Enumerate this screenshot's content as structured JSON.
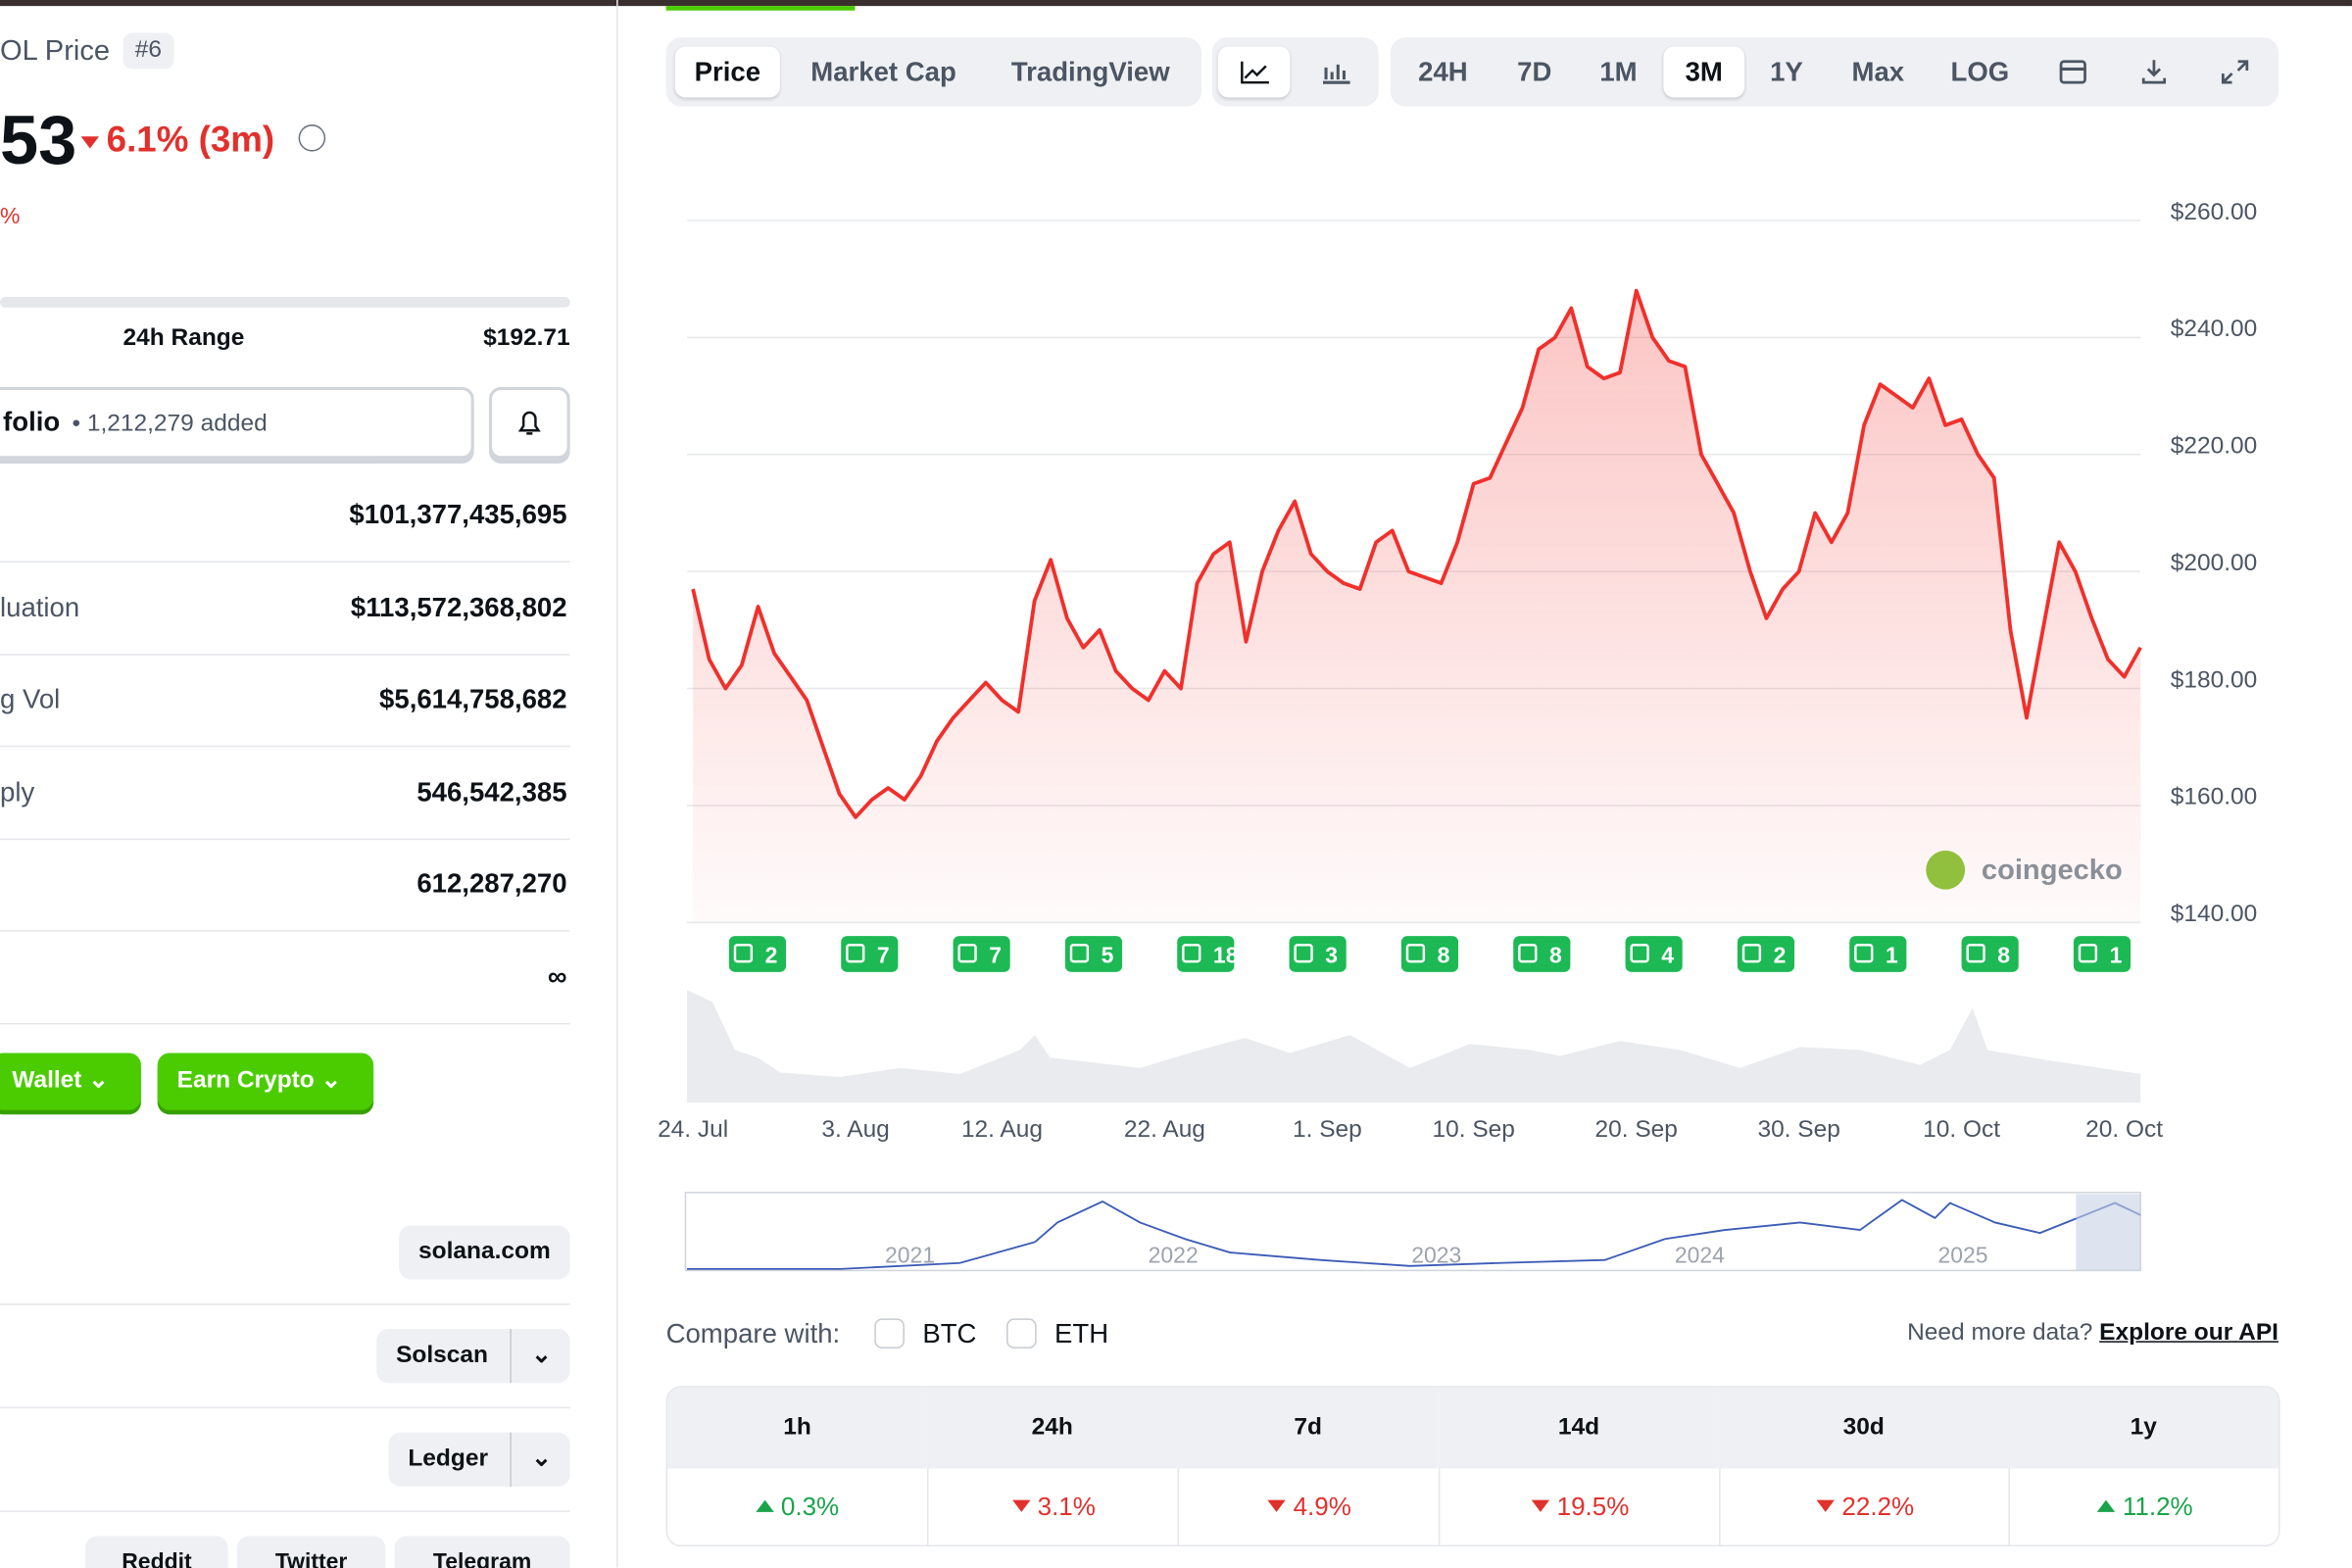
{
  "left": {
    "name": "OL Price",
    "rank": "#6",
    "price": "53",
    "change": "6.1% (3m)",
    "change_sub": "%",
    "range_label": "24h Range",
    "range_high": "$192.71",
    "portfolio": "folio",
    "portfolio_added": "• 1,212,279 added",
    "stats": [
      {
        "value": "$101,377,435,695"
      },
      {
        "label": "luation",
        "value": "$113,572,368,802"
      },
      {
        "label": "g Vol",
        "value": "$5,614,758,682"
      },
      {
        "label": "ply",
        "value": "546,542,385"
      },
      {
        "value": "612,287,270"
      },
      {
        "value": "∞"
      }
    ],
    "buttons": [
      "Wallet",
      "Earn Crypto"
    ],
    "links": [
      "solana.com",
      "Solscan",
      "Ledger"
    ],
    "socials": [
      "Reddit",
      "Twitter",
      "Telegram"
    ]
  },
  "toolbar": {
    "views": [
      "Price",
      "Market Cap",
      "TradingView"
    ],
    "ranges": [
      "24H",
      "7D",
      "1M",
      "3M",
      "1Y",
      "Max",
      "LOG"
    ],
    "active_view": "Price",
    "active_range": "3M"
  },
  "chart_data": {
    "type": "line",
    "color": "#f0302c",
    "grid": true,
    "x": [
      "24. Jul",
      "25. Jul",
      "26. Jul",
      "27. Jul",
      "28. Jul",
      "29. Jul",
      "30. Jul",
      "31. Jul",
      "1. Aug",
      "2. Aug",
      "3. Aug",
      "4. Aug",
      "5. Aug",
      "6. Aug",
      "7. Aug",
      "8. Aug",
      "9. Aug",
      "10. Aug",
      "11. Aug",
      "12. Aug",
      "13. Aug",
      "14. Aug",
      "15. Aug",
      "16. Aug",
      "17. Aug",
      "18. Aug",
      "19. Aug",
      "20. Aug",
      "21. Aug",
      "22. Aug",
      "23. Aug",
      "24. Aug",
      "25. Aug",
      "26. Aug",
      "27. Aug",
      "28. Aug",
      "29. Aug",
      "30. Aug",
      "31. Aug",
      "1. Sep",
      "2. Sep",
      "3. Sep",
      "4. Sep",
      "5. Sep",
      "6. Sep",
      "7. Sep",
      "8. Sep",
      "9. Sep",
      "10. Sep",
      "11. Sep",
      "12. Sep",
      "13. Sep",
      "14. Sep",
      "15. Sep",
      "16. Sep",
      "17. Sep",
      "18. Sep",
      "19. Sep",
      "20. Sep",
      "21. Sep",
      "22. Sep",
      "23. Sep",
      "24. Sep",
      "25. Sep",
      "26. Sep",
      "27. Sep",
      "28. Sep",
      "29. Sep",
      "30. Sep",
      "1. Oct",
      "2. Oct",
      "3. Oct",
      "4. Oct",
      "5. Oct",
      "6. Oct",
      "7. Oct",
      "8. Oct",
      "9. Oct",
      "10. Oct",
      "11. Oct",
      "12. Oct",
      "13. Oct",
      "14. Oct",
      "15. Oct",
      "16. Oct",
      "17. Oct",
      "18. Oct",
      "19. Oct",
      "20. Oct",
      "21. Oct"
    ],
    "values": [
      197,
      185,
      180,
      184,
      194,
      186,
      182,
      178,
      170,
      162,
      158,
      161,
      163,
      161,
      165,
      171,
      175,
      178,
      181,
      178,
      176,
      195,
      202,
      192,
      187,
      190,
      183,
      180,
      178,
      183,
      180,
      198,
      203,
      205,
      188,
      200,
      207,
      212,
      203,
      200,
      198,
      197,
      205,
      207,
      200,
      199,
      198,
      205,
      215,
      216,
      222,
      228,
      238,
      240,
      245,
      235,
      233,
      234,
      248,
      240,
      236,
      235,
      220,
      215,
      210,
      200,
      192,
      197,
      200,
      210,
      205,
      210,
      225,
      232,
      230,
      228,
      233,
      225,
      226,
      220,
      216,
      190,
      175,
      190,
      205,
      200,
      192,
      185,
      182,
      187
    ],
    "ylim": [
      140,
      260
    ],
    "yticks": [
      {
        "value": 140,
        "label": "$140.00"
      },
      {
        "value": 160,
        "label": "$160.00"
      },
      {
        "value": 180,
        "label": "$180.00"
      },
      {
        "value": 200,
        "label": "$200.00"
      },
      {
        "value": 220,
        "label": "$220.00"
      },
      {
        "value": 240,
        "label": "$240.00"
      },
      {
        "value": 260,
        "label": "$260.00"
      }
    ],
    "xticks": [
      "24. Jul",
      "3. Aug",
      "12. Aug",
      "22. Aug",
      "1. Sep",
      "10. Sep",
      "20. Sep",
      "30. Sep",
      "10. Oct",
      "20. Oct"
    ],
    "news": [
      2,
      7,
      7,
      5,
      18,
      3,
      8,
      8,
      4,
      2,
      1,
      8,
      1
    ],
    "watermark": "coingecko",
    "navigator_years": [
      "2021",
      "2022",
      "2023",
      "2024",
      "2025"
    ]
  },
  "compare": {
    "label": "Compare with:",
    "options": [
      "BTC",
      "ETH"
    ],
    "api_prompt": "Need more data?",
    "api_link": "Explore our API"
  },
  "changes": {
    "columns": [
      "1h",
      "24h",
      "7d",
      "14d",
      "30d",
      "1y"
    ],
    "values": [
      "0.3%",
      "3.1%",
      "4.9%",
      "19.5%",
      "22.2%",
      "11.2%"
    ],
    "directions": [
      "up",
      "down",
      "down",
      "down",
      "down",
      "up"
    ]
  }
}
